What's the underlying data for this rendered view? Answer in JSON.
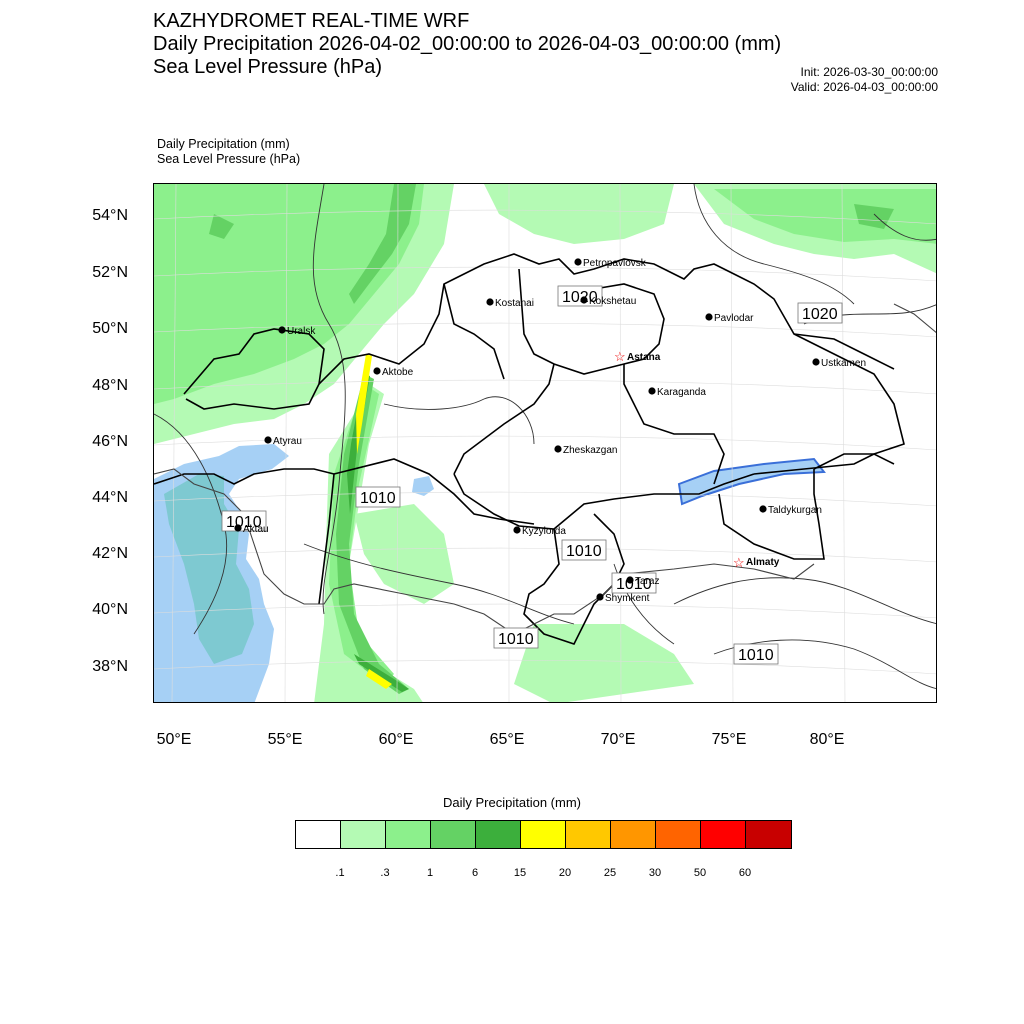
{
  "header": {
    "line1": "KAZHYDROMET REAL-TIME WRF",
    "line2": "Daily Precipitation 2026-04-02_00:00:00 to 2026-04-03_00:00:00 (mm)",
    "line3": "Sea Level Pressure  (hPa)",
    "init": "Init: 2026-03-30_00:00:00",
    "valid": "Valid: 2026-04-03_00:00:00"
  },
  "subtitle": {
    "line1": "Daily Precipitation   (mm)",
    "line2": "Sea Level Pressure   (hPa)"
  },
  "axes": {
    "lat_labels": [
      "54°N",
      "52°N",
      "50°N",
      "48°N",
      "46°N",
      "44°N",
      "42°N",
      "40°N",
      "38°N"
    ],
    "lon_labels": [
      "50°E",
      "55°E",
      "60°E",
      "65°E",
      "70°E",
      "75°E",
      "80°E"
    ]
  },
  "cities": [
    {
      "name": "Petropavlovsk",
      "type": "dot"
    },
    {
      "name": "Kostanai",
      "type": "dot"
    },
    {
      "name": "Kokshetau",
      "type": "dot"
    },
    {
      "name": "Pavlodar",
      "type": "dot"
    },
    {
      "name": "Uralsk",
      "type": "dot"
    },
    {
      "name": "Aktobe",
      "type": "dot"
    },
    {
      "name": "Astana",
      "type": "star"
    },
    {
      "name": "Ustkamen",
      "type": "dot"
    },
    {
      "name": "Karaganda",
      "type": "dot"
    },
    {
      "name": "Atyrau",
      "type": "dot"
    },
    {
      "name": "Zheskazgan",
      "type": "dot"
    },
    {
      "name": "Aktau",
      "type": "dot"
    },
    {
      "name": "Kyzylorda",
      "type": "dot"
    },
    {
      "name": "Taldykurgan",
      "type": "dot"
    },
    {
      "name": "Almaty",
      "type": "star"
    },
    {
      "name": "Taraz",
      "type": "dot"
    },
    {
      "name": "Shymkent",
      "type": "dot"
    }
  ],
  "isobar_labels": [
    "1020",
    "1020",
    "1010",
    "1010",
    "1010",
    "1010",
    "1010",
    "1010"
  ],
  "colorbar": {
    "title": "Daily Precipitation (mm)",
    "colors": [
      "#ffffff",
      "#b4fab4",
      "#8cf08c",
      "#64d264",
      "#3caf3c",
      "#ffff00",
      "#ffc800",
      "#ff9600",
      "#ff6400",
      "#ff0000",
      "#c80000"
    ],
    "labels": [
      ".1",
      ".3",
      "1",
      "6",
      "15",
      "20",
      "25",
      "30",
      "50",
      "60"
    ]
  }
}
